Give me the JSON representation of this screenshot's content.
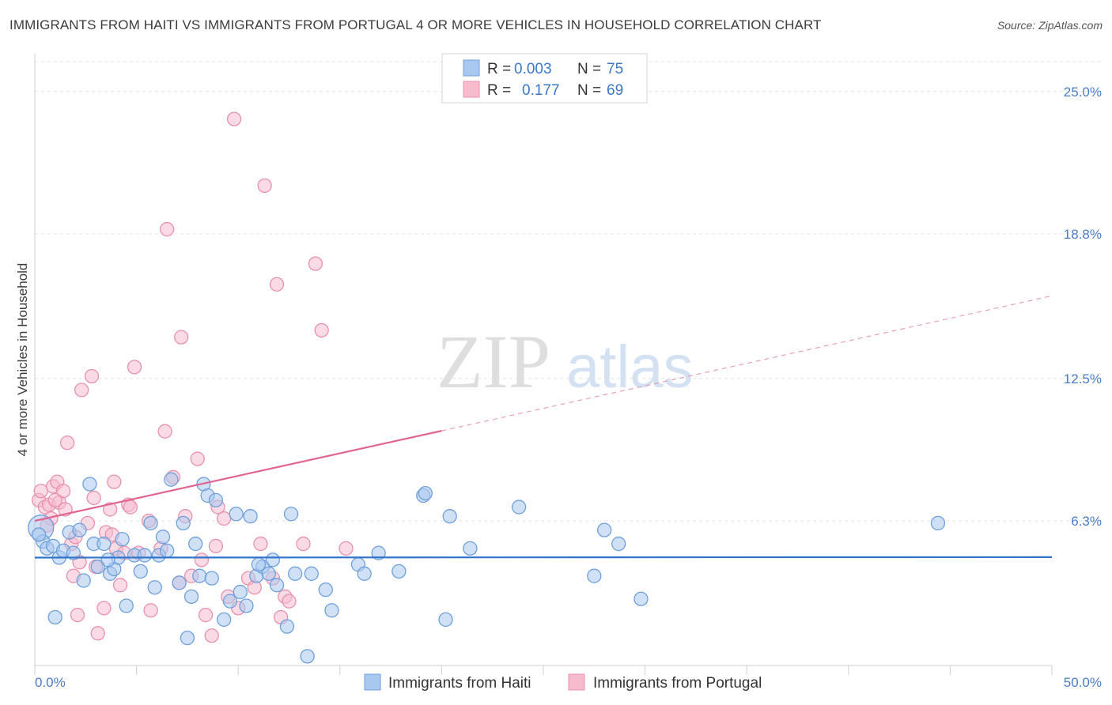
{
  "title": "IMMIGRANTS FROM HAITI VS IMMIGRANTS FROM PORTUGAL 4 OR MORE VEHICLES IN HOUSEHOLD CORRELATION CHART",
  "source": "Source: ZipAtlas.com",
  "watermark": {
    "zip": "ZIP",
    "atlas": "atlas"
  },
  "chart_data": {
    "type": "scatter",
    "title": "IMMIGRANTS FROM HAITI VS IMMIGRANTS FROM PORTUGAL 4 OR MORE VEHICLES IN HOUSEHOLD CORRELATION CHART",
    "xlabel": "",
    "ylabel": "4 or more Vehicles in Household",
    "xlim": [
      0,
      50
    ],
    "ylim": [
      0,
      26.3
    ],
    "x_tick_labels": [
      "0.0%",
      "50.0%"
    ],
    "y_ticks": [
      6.3,
      12.5,
      18.8,
      25.0
    ],
    "y_tick_labels": [
      "6.3%",
      "12.5%",
      "18.8%",
      "25.0%"
    ],
    "grid": true,
    "legend": {
      "position": "top-center",
      "entries": [
        {
          "r_label": "R =",
          "r_value": "0.003",
          "n_label": "N =",
          "n_value": "75"
        },
        {
          "r_label": "R =",
          "r_value": "0.177",
          "n_label": "N =",
          "n_value": "69"
        }
      ]
    },
    "series": [
      {
        "name": "Immigrants from Haiti",
        "color": "#6fa0dc",
        "fill": "#a9c8ef",
        "trend": {
          "x0": 0,
          "y0": 4.7,
          "x1": 50,
          "y1": 4.72,
          "dashed_from": null
        },
        "points": [
          [
            0.3,
            6.0
          ],
          [
            0.4,
            5.4
          ],
          [
            0.6,
            5.1
          ],
          [
            0.9,
            5.2
          ],
          [
            1.0,
            2.1
          ],
          [
            1.2,
            4.7
          ],
          [
            1.4,
            5.0
          ],
          [
            1.7,
            5.8
          ],
          [
            1.9,
            4.9
          ],
          [
            2.2,
            5.9
          ],
          [
            2.4,
            3.7
          ],
          [
            2.7,
            7.9
          ],
          [
            2.9,
            5.3
          ],
          [
            3.1,
            4.3
          ],
          [
            3.4,
            5.3
          ],
          [
            3.7,
            4.0
          ],
          [
            3.9,
            4.2
          ],
          [
            4.1,
            4.7
          ],
          [
            4.3,
            5.5
          ],
          [
            4.5,
            2.6
          ],
          [
            4.9,
            4.8
          ],
          [
            5.2,
            4.1
          ],
          [
            5.4,
            4.8
          ],
          [
            5.7,
            6.2
          ],
          [
            5.9,
            3.4
          ],
          [
            6.1,
            4.8
          ],
          [
            6.3,
            5.6
          ],
          [
            6.5,
            5.0
          ],
          [
            6.7,
            8.1
          ],
          [
            7.1,
            3.6
          ],
          [
            7.3,
            6.2
          ],
          [
            7.5,
            1.2
          ],
          [
            7.7,
            3.0
          ],
          [
            7.9,
            5.3
          ],
          [
            8.1,
            3.9
          ],
          [
            8.3,
            7.9
          ],
          [
            8.5,
            7.4
          ],
          [
            8.7,
            3.8
          ],
          [
            8.9,
            7.2
          ],
          [
            9.3,
            2.0
          ],
          [
            9.6,
            2.8
          ],
          [
            9.9,
            6.6
          ],
          [
            10.1,
            3.2
          ],
          [
            10.4,
            2.6
          ],
          [
            10.6,
            6.5
          ],
          [
            10.9,
            3.9
          ],
          [
            11.2,
            4.3
          ],
          [
            11.5,
            4.0
          ],
          [
            11.7,
            4.6
          ],
          [
            11.9,
            3.5
          ],
          [
            12.4,
            1.7
          ],
          [
            12.6,
            6.6
          ],
          [
            12.8,
            4.0
          ],
          [
            13.4,
            0.4
          ],
          [
            13.6,
            4.0
          ],
          [
            14.3,
            3.3
          ],
          [
            14.6,
            2.4
          ],
          [
            15.9,
            4.4
          ],
          [
            16.2,
            4.0
          ],
          [
            16.9,
            4.9
          ],
          [
            17.9,
            4.1
          ],
          [
            19.1,
            7.4
          ],
          [
            19.2,
            7.5
          ],
          [
            20.2,
            2.0
          ],
          [
            20.4,
            6.5
          ],
          [
            21.4,
            5.1
          ],
          [
            23.8,
            6.9
          ],
          [
            27.5,
            3.9
          ],
          [
            28.0,
            5.9
          ],
          [
            28.7,
            5.3
          ],
          [
            29.8,
            2.9
          ],
          [
            44.4,
            6.2
          ],
          [
            0.2,
            5.7
          ],
          [
            3.6,
            4.6
          ],
          [
            11.0,
            4.4
          ]
        ]
      },
      {
        "name": "Immigrants from Portugal",
        "color": "#e892ad",
        "fill": "#f6bccd",
        "trend": {
          "x0": 0,
          "y0": 6.3,
          "x1": 50,
          "y1": 16.1,
          "dashed_from": 20
        },
        "points": [
          [
            0.2,
            7.2
          ],
          [
            0.3,
            7.6
          ],
          [
            0.5,
            6.9
          ],
          [
            0.7,
            7.0
          ],
          [
            0.8,
            6.4
          ],
          [
            0.9,
            7.8
          ],
          [
            1.1,
            8.0
          ],
          [
            1.2,
            7.1
          ],
          [
            1.4,
            7.6
          ],
          [
            1.5,
            6.8
          ],
          [
            1.6,
            9.7
          ],
          [
            1.8,
            5.3
          ],
          [
            1.9,
            3.9
          ],
          [
            2.0,
            5.6
          ],
          [
            2.1,
            2.2
          ],
          [
            2.2,
            4.5
          ],
          [
            2.3,
            12.0
          ],
          [
            2.6,
            6.2
          ],
          [
            2.8,
            12.6
          ],
          [
            2.9,
            7.3
          ],
          [
            3.0,
            4.3
          ],
          [
            3.1,
            1.4
          ],
          [
            3.4,
            2.5
          ],
          [
            3.5,
            5.8
          ],
          [
            3.7,
            6.8
          ],
          [
            3.8,
            5.7
          ],
          [
            3.9,
            8.0
          ],
          [
            4.0,
            5.1
          ],
          [
            4.2,
            3.5
          ],
          [
            4.4,
            4.9
          ],
          [
            4.6,
            7.0
          ],
          [
            4.7,
            6.9
          ],
          [
            4.9,
            13.0
          ],
          [
            5.1,
            4.9
          ],
          [
            5.6,
            6.3
          ],
          [
            5.7,
            2.4
          ],
          [
            6.2,
            5.1
          ],
          [
            6.4,
            10.2
          ],
          [
            6.5,
            19.0
          ],
          [
            6.8,
            8.2
          ],
          [
            7.1,
            3.6
          ],
          [
            7.2,
            14.3
          ],
          [
            7.4,
            6.5
          ],
          [
            7.7,
            3.9
          ],
          [
            8.0,
            9.0
          ],
          [
            8.2,
            4.6
          ],
          [
            8.4,
            2.2
          ],
          [
            8.7,
            1.3
          ],
          [
            8.9,
            5.2
          ],
          [
            9.0,
            6.9
          ],
          [
            9.3,
            6.4
          ],
          [
            9.5,
            3.0
          ],
          [
            9.8,
            23.8
          ],
          [
            10.0,
            2.5
          ],
          [
            10.5,
            3.8
          ],
          [
            10.8,
            3.4
          ],
          [
            11.1,
            5.3
          ],
          [
            11.3,
            20.9
          ],
          [
            11.7,
            3.8
          ],
          [
            11.9,
            16.6
          ],
          [
            12.1,
            2.1
          ],
          [
            12.3,
            3.0
          ],
          [
            12.5,
            2.8
          ],
          [
            13.2,
            5.3
          ],
          [
            13.8,
            17.5
          ],
          [
            14.1,
            14.6
          ],
          [
            15.3,
            5.1
          ],
          [
            0.6,
            6.1
          ],
          [
            1.0,
            7.2
          ]
        ]
      }
    ]
  },
  "bottom_legend": {
    "haiti": "Immigrants from Haiti",
    "portugal": "Immigrants from Portugal"
  }
}
